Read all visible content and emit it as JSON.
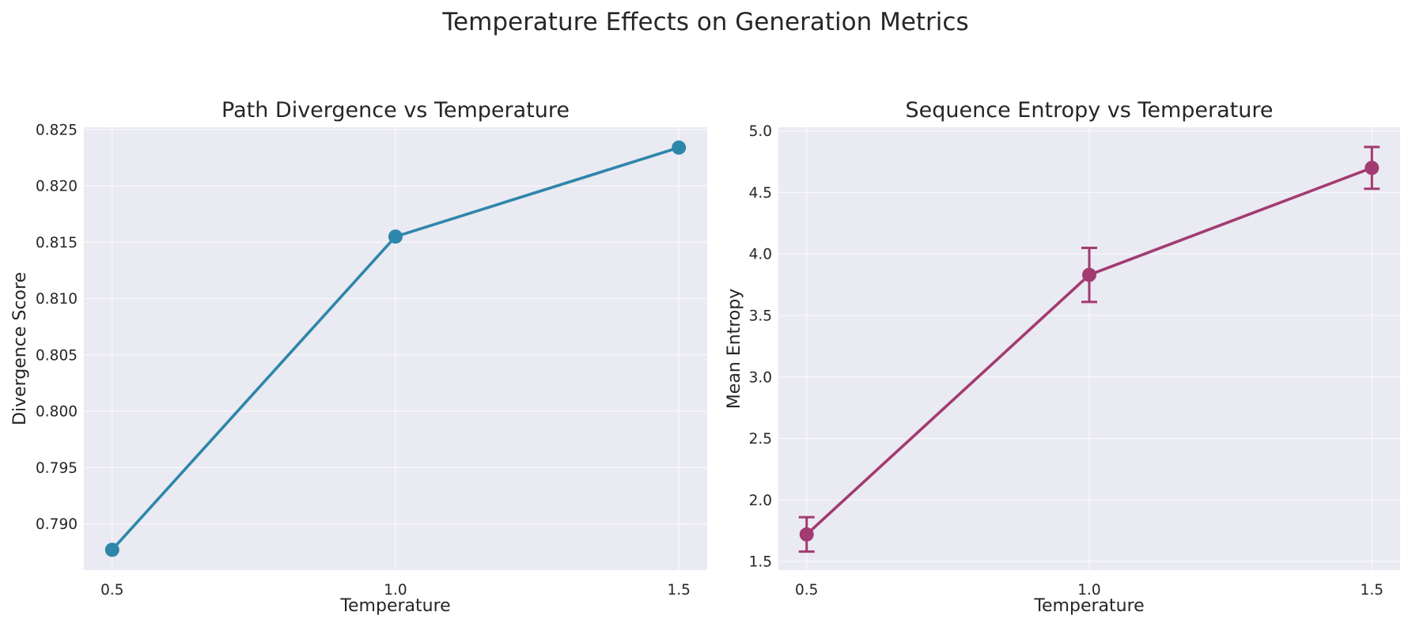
{
  "figure": {
    "suptitle": "Temperature Effects on Generation Metrics"
  },
  "chart_data": [
    {
      "type": "line",
      "title": "Path Divergence vs Temperature",
      "xlabel": "Temperature",
      "ylabel": "Divergence Score",
      "x": [
        0.5,
        1.0,
        1.5
      ],
      "x_ticks": [
        "0.5",
        "1.0",
        "1.5"
      ],
      "y_ticks": [
        "0.790",
        "0.795",
        "0.800",
        "0.805",
        "0.810",
        "0.815",
        "0.820",
        "0.825"
      ],
      "ylim": [
        0.7859,
        0.8252
      ],
      "xlim": [
        0.45,
        1.55
      ],
      "grid": true,
      "background": "#eaeaf2",
      "series": [
        {
          "values": [
            0.7877,
            0.8155,
            0.8234
          ],
          "color": "#2e86ab"
        }
      ]
    },
    {
      "type": "line",
      "title": "Sequence Entropy vs Temperature",
      "xlabel": "Temperature",
      "ylabel": "Mean Entropy",
      "x": [
        0.5,
        1.0,
        1.5
      ],
      "x_ticks": [
        "0.5",
        "1.0",
        "1.5"
      ],
      "y_ticks": [
        "1.5",
        "2.0",
        "2.5",
        "3.0",
        "3.5",
        "4.0",
        "4.5",
        "5.0"
      ],
      "ylim": [
        1.43,
        5.03
      ],
      "xlim": [
        0.45,
        1.55
      ],
      "grid": true,
      "background": "#eaeaf2",
      "series": [
        {
          "values": [
            1.72,
            3.83,
            4.7
          ],
          "error": [
            0.14,
            0.22,
            0.17
          ],
          "color": "#a23b72"
        }
      ]
    }
  ]
}
